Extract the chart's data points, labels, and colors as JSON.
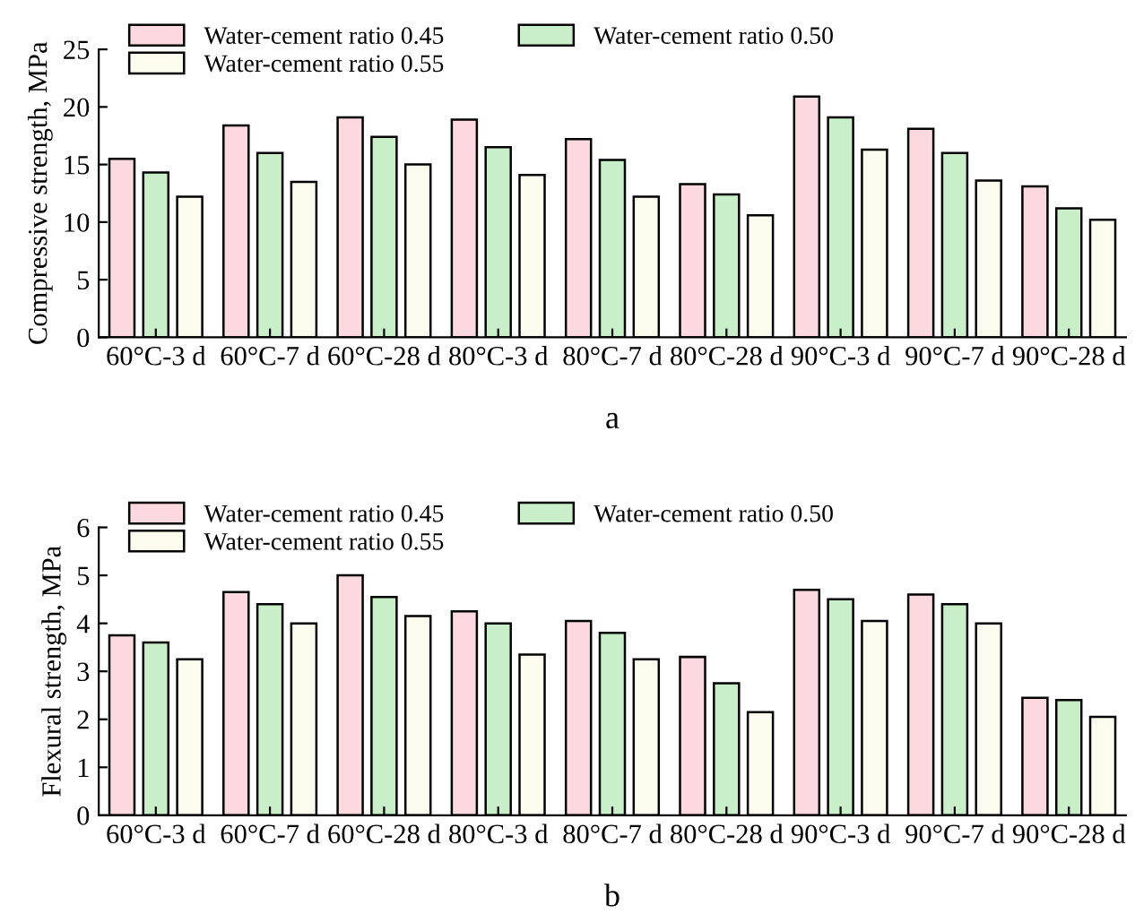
{
  "chart_data": [
    {
      "type": "bar",
      "xlabel": "a",
      "ylabel": "Compressive strength, MPa",
      "categories": [
        "60°C-3 d",
        "60°C-7 d",
        "60°C-28 d",
        "80°C-3 d",
        "80°C-7 d",
        "80°C-28 d",
        "90°C-3 d",
        "90°C-7 d",
        "90°C-28 d"
      ],
      "series": [
        {
          "name": "Water-cement ratio 0.45",
          "color": "#fbd9de",
          "values": [
            15.5,
            18.4,
            19.1,
            18.9,
            17.2,
            13.3,
            20.9,
            18.1,
            13.1
          ]
        },
        {
          "name": "Water-cement ratio 0.50",
          "color": "#c8efc8",
          "values": [
            14.3,
            16.0,
            17.4,
            16.5,
            15.4,
            12.4,
            19.1,
            16.0,
            11.2
          ]
        },
        {
          "name": "Water-cement ratio 0.55",
          "color": "#fbfbee",
          "values": [
            12.2,
            13.5,
            15.0,
            14.1,
            12.2,
            10.6,
            16.3,
            13.6,
            10.2
          ]
        }
      ],
      "ylim": [
        0,
        25
      ],
      "yticks": [
        0,
        5,
        10,
        15,
        20,
        25
      ],
      "grid": false,
      "legend": "top left"
    },
    {
      "type": "bar",
      "xlabel": "b",
      "ylabel": "Flexural strength, MPa",
      "categories": [
        "60°C-3 d",
        "60°C-7 d",
        "60°C-28 d",
        "80°C-3 d",
        "80°C-7 d",
        "80°C-28 d",
        "90°C-3 d",
        "90°C-7 d",
        "90°C-28 d"
      ],
      "series": [
        {
          "name": "Water-cement ratio 0.45",
          "color": "#fbd9de",
          "values": [
            3.75,
            4.65,
            5.0,
            4.25,
            4.05,
            3.3,
            4.7,
            4.6,
            2.45
          ]
        },
        {
          "name": "Water-cement ratio 0.50",
          "color": "#c8efc8",
          "values": [
            3.6,
            4.4,
            4.55,
            4.0,
            3.8,
            2.75,
            4.5,
            4.4,
            2.4
          ]
        },
        {
          "name": "Water-cement ratio 0.55",
          "color": "#fbfbee",
          "values": [
            3.25,
            4.0,
            4.15,
            3.35,
            3.25,
            2.15,
            4.05,
            4.0,
            2.05
          ]
        }
      ],
      "ylim": [
        0,
        6
      ],
      "yticks": [
        0,
        1,
        2,
        3,
        4,
        5,
        6
      ],
      "grid": false,
      "legend": "top left"
    }
  ]
}
